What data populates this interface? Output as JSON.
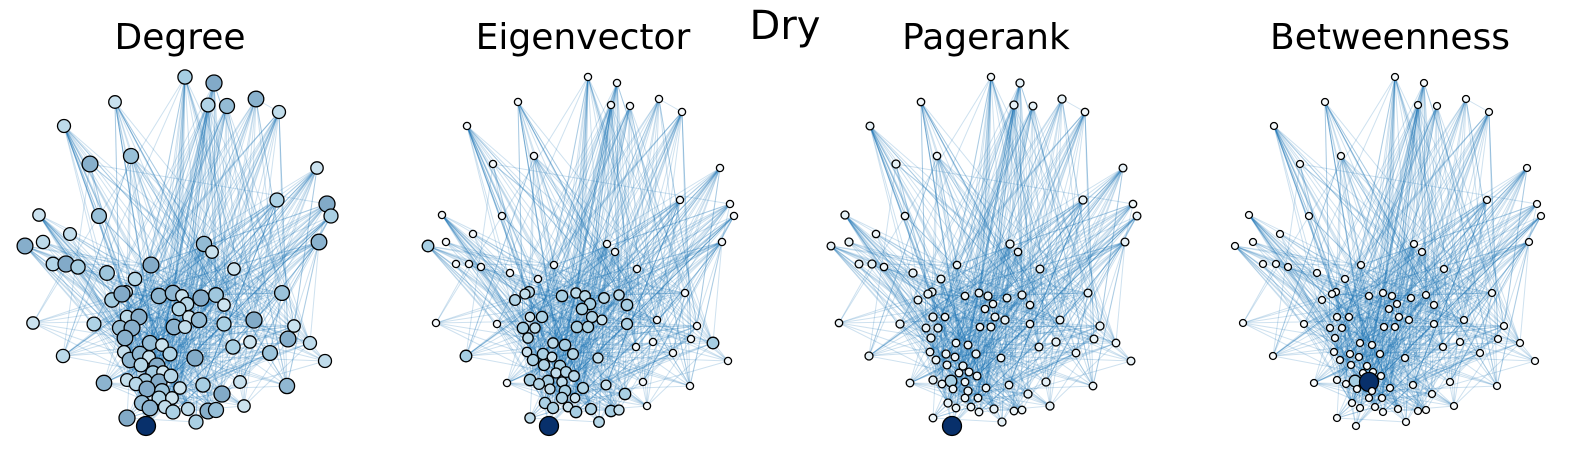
{
  "figure": {
    "suptitle": "Dry"
  },
  "panels": [
    {
      "title": "Degree",
      "measure": "degree"
    },
    {
      "title": "Eigenvector",
      "measure": "eigenvector"
    },
    {
      "title": "Pagerank",
      "measure": "pagerank"
    },
    {
      "title": "Betweenness",
      "measure": "betweenness"
    }
  ],
  "style": {
    "edge_color": "#1f77b4",
    "node_low_color": "#ffffff",
    "node_mid_color": "#a6cee3",
    "node_high_color": "#08306b",
    "node_outline_color": "#000000"
  }
}
